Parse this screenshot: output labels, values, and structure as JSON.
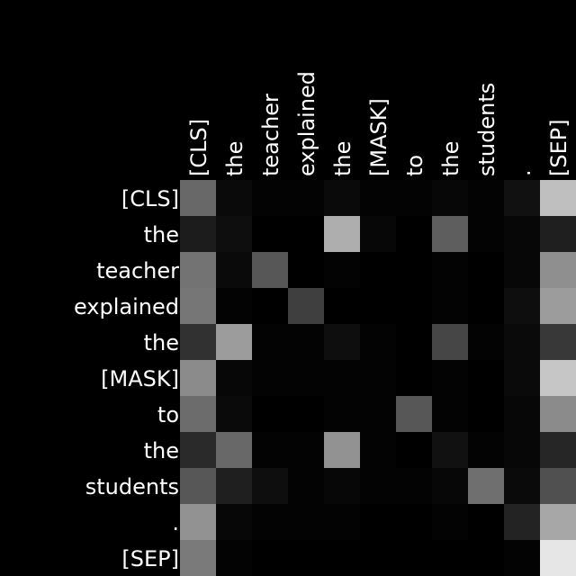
{
  "chart_data": {
    "type": "heatmap",
    "colormap": "grayscale (black = 0, white = max)",
    "x_tokens": [
      "[CLS]",
      "the",
      "teacher",
      "explained",
      "the",
      "[MASK]",
      "to",
      "the",
      "students",
      ".",
      "[SEP]"
    ],
    "y_tokens": [
      "[CLS]",
      "the",
      "teacher",
      "explained",
      "the",
      "[MASK]",
      "to",
      "the",
      "students",
      ".",
      "[SEP]"
    ],
    "values": [
      [
        0.3,
        0.03,
        0.01,
        0.01,
        0.03,
        0.01,
        0.01,
        0.02,
        0.01,
        0.05,
        0.55
      ],
      [
        0.08,
        0.04,
        0.0,
        0.0,
        0.5,
        0.02,
        0.0,
        0.27,
        0.01,
        0.02,
        0.09
      ],
      [
        0.33,
        0.03,
        0.25,
        0.0,
        0.01,
        0.0,
        0.0,
        0.01,
        0.0,
        0.02,
        0.41
      ],
      [
        0.34,
        0.01,
        0.0,
        0.18,
        0.0,
        0.0,
        0.0,
        0.01,
        0.0,
        0.04,
        0.45
      ],
      [
        0.14,
        0.45,
        0.01,
        0.01,
        0.04,
        0.01,
        0.0,
        0.2,
        0.01,
        0.03,
        0.16
      ],
      [
        0.4,
        0.02,
        0.01,
        0.01,
        0.01,
        0.01,
        0.0,
        0.01,
        0.0,
        0.03,
        0.57
      ],
      [
        0.31,
        0.03,
        0.0,
        0.0,
        0.01,
        0.01,
        0.25,
        0.01,
        0.0,
        0.02,
        0.4
      ],
      [
        0.12,
        0.3,
        0.01,
        0.01,
        0.42,
        0.01,
        0.0,
        0.05,
        0.01,
        0.02,
        0.11
      ],
      [
        0.25,
        0.09,
        0.04,
        0.01,
        0.02,
        0.01,
        0.01,
        0.02,
        0.32,
        0.03,
        0.23
      ],
      [
        0.42,
        0.02,
        0.01,
        0.01,
        0.01,
        0.0,
        0.0,
        0.01,
        0.0,
        0.1,
        0.48
      ],
      [
        0.35,
        0.01,
        0.0,
        0.0,
        0.0,
        0.0,
        0.0,
        0.0,
        0.0,
        0.01,
        0.66
      ]
    ],
    "vmin": 0,
    "vmax": 0.66
  }
}
